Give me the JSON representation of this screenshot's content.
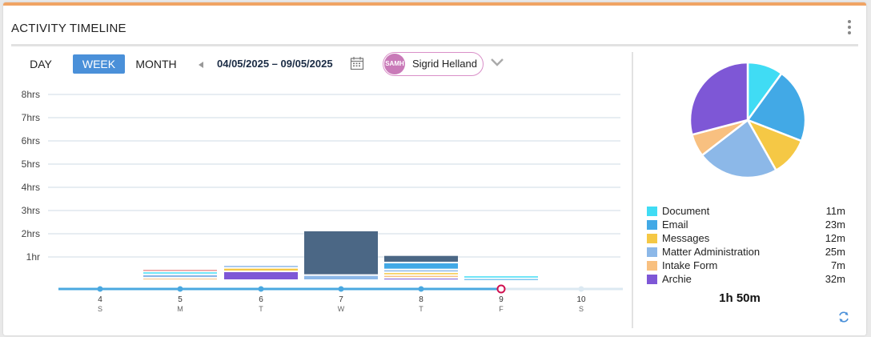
{
  "widget": {
    "title": "ACTIVITY TIMELINE"
  },
  "tabs": [
    {
      "label": "DAY",
      "active": false
    },
    {
      "label": "WEEK",
      "active": true
    },
    {
      "label": "MONTH",
      "active": false
    }
  ],
  "date_range": "04/05/2025 – 09/05/2025",
  "user": {
    "initials": "SAMH",
    "name": "Sigrid Helland"
  },
  "icons": {
    "menu": "kebab-menu-icon",
    "prev": "chevron-left-icon",
    "calendar": "calendar-icon",
    "dropdown": "chevron-down-icon",
    "refresh": "refresh-icon"
  },
  "colors": {
    "accent": "#f0a464",
    "Document": "#40dcf4",
    "Email": "#42a9e6",
    "Messages": "#f5c845",
    "Matter Administration": "#8cb8e8",
    "Intake Form": "#f8c080",
    "Archie": "#7e57d6",
    "Other": "#4b6785",
    "Red": "#e06060",
    "timeline": "#4aa8e0",
    "today": "#d01050"
  },
  "chart_data": [
    {
      "type": "bar",
      "stacked": true,
      "ylabel": "",
      "ylim": [
        0,
        8
      ],
      "y_ticks": [
        "1hr",
        "2hrs",
        "3hrs",
        "4hrs",
        "5hrs",
        "6hrs",
        "7hrs",
        "8hrs"
      ],
      "days": [
        {
          "date": "4",
          "dow": "S"
        },
        {
          "date": "5",
          "dow": "M"
        },
        {
          "date": "6",
          "dow": "T"
        },
        {
          "date": "7",
          "dow": "W"
        },
        {
          "date": "8",
          "dow": "T"
        },
        {
          "date": "9",
          "dow": "F"
        },
        {
          "date": "10",
          "dow": "S"
        }
      ],
      "today_index": 5,
      "segments": [
        [],
        [
          {
            "c": "Intake Form",
            "h": 0.1
          },
          {
            "c": "Matter Administration",
            "h": 0.15
          },
          {
            "c": "Document",
            "h": 0.12
          },
          {
            "c": "Red",
            "h": 0.1
          }
        ],
        [
          {
            "c": "Archie",
            "h": 0.38
          },
          {
            "c": "Messages",
            "h": 0.15
          },
          {
            "c": "Matter Administration",
            "h": 0.12
          }
        ],
        [
          {
            "c": "Matter Administration",
            "h": 0.22
          },
          {
            "c": "Other",
            "h": 1.92
          }
        ],
        [
          {
            "c": "Archie",
            "h": 0.1
          },
          {
            "c": "Intake Form",
            "h": 0.12
          },
          {
            "c": "Messages",
            "h": 0.12
          },
          {
            "c": "Matter Administration",
            "h": 0.12
          },
          {
            "c": "Email",
            "h": 0.3
          },
          {
            "c": "Other",
            "h": 0.32
          }
        ],
        [
          {
            "c": "Email",
            "h": 0.08
          },
          {
            "c": "Document",
            "h": 0.12
          }
        ],
        []
      ]
    },
    {
      "type": "pie",
      "slices": [
        {
          "name": "Document",
          "value": 11,
          "label": "11m"
        },
        {
          "name": "Email",
          "value": 23,
          "label": "23m"
        },
        {
          "name": "Messages",
          "value": 12,
          "label": "12m"
        },
        {
          "name": "Matter Administration",
          "value": 25,
          "label": "25m"
        },
        {
          "name": "Intake Form",
          "value": 7,
          "label": "7m"
        },
        {
          "name": "Archie",
          "value": 32,
          "label": "32m"
        }
      ],
      "total_label": "1h 50m"
    }
  ]
}
